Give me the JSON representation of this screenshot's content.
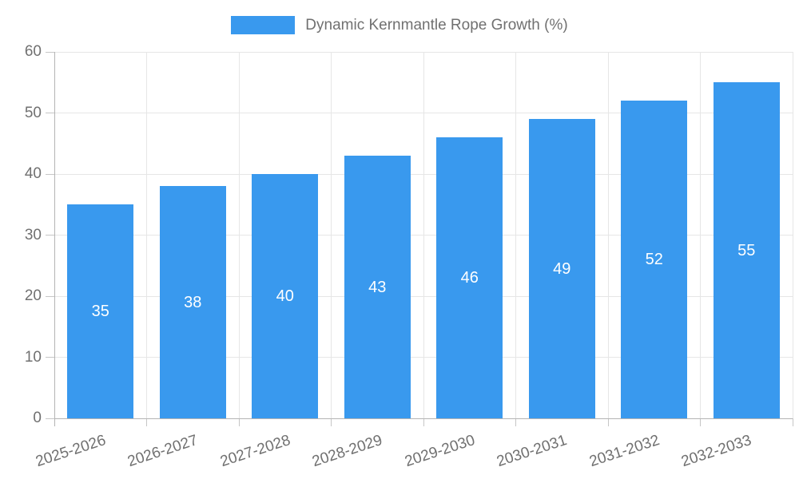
{
  "chart_data": {
    "type": "bar",
    "title": "Dynamic Kernmantle Rope Growth (%)",
    "legend_position": "top",
    "categories": [
      "2025-2026",
      "2026-2027",
      "2027-2028",
      "2028-2029",
      "2029-2030",
      "2030-2031",
      "2031-2032",
      "2032-2033"
    ],
    "values": [
      35,
      38,
      40,
      43,
      46,
      49,
      52,
      55
    ],
    "bar_value_labels": [
      "35",
      "38",
      "40",
      "43",
      "46",
      "49",
      "52",
      "55"
    ],
    "xlabel": "",
    "ylabel": "",
    "ylim": [
      0,
      60
    ],
    "yticks": [
      0,
      10,
      20,
      30,
      40,
      50,
      60
    ],
    "grid": true,
    "bar_color": "#3999EE",
    "bar_label_color": "#FFFFFF",
    "grid_color": "#E6E6E6",
    "axis_color": "#B4B4B4",
    "tick_color": "#C6C6C6",
    "text_color": "#707070"
  }
}
